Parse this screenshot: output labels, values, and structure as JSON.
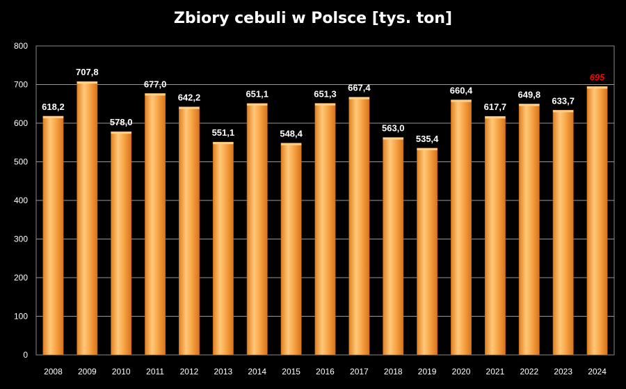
{
  "chart_data": {
    "type": "bar",
    "title": "Zbiory cebuli w Polsce [tys. ton]",
    "xlabel": "",
    "ylabel": "",
    "ylim": [
      0,
      800
    ],
    "yticks": [
      0,
      100,
      200,
      300,
      400,
      500,
      600,
      700,
      800
    ],
    "grid": true,
    "categories": [
      "2008",
      "2009",
      "2010",
      "2011",
      "2012",
      "2013",
      "2014",
      "2015",
      "2016",
      "2017",
      "2018",
      "2019",
      "2020",
      "2021",
      "2022",
      "2023",
      "2024"
    ],
    "values": [
      618.2,
      707.8,
      578.0,
      677.0,
      642.2,
      551.1,
      651.1,
      548.4,
      651.3,
      667.4,
      563.0,
      535.4,
      660.4,
      617.7,
      649.8,
      633.7,
      695
    ],
    "data_labels": [
      "618,2",
      "707,8",
      "578,0",
      "677,0",
      "642,2",
      "551,1",
      "651,1",
      "548,4",
      "651,3",
      "667,4",
      "563,0",
      "535,4",
      "660,4",
      "617,7",
      "649,8",
      "633,7",
      "695"
    ],
    "highlight_index": 16,
    "colors": {
      "background": "#000000",
      "bar": "#f7a33c",
      "bar_light": "#ffd08a",
      "bar_dark": "#d9731a",
      "grid": "#9a9a9a",
      "text": "#ffffff",
      "highlight_label": "#ff0000"
    }
  }
}
